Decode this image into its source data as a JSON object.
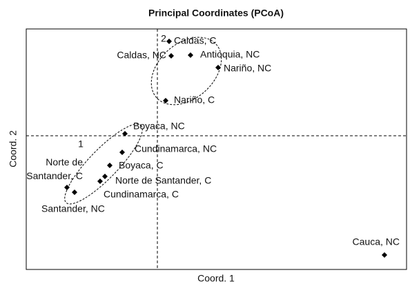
{
  "chart_data": {
    "type": "scatter",
    "title": "Principal Coordinates (PCoA)",
    "x_label": "Coord. 1",
    "y_label": "Coord. 2",
    "xlim": [
      -0.19,
      0.361
    ],
    "ylim": [
      -0.194,
      0.155
    ],
    "reference_lines": {
      "x": 0,
      "y": 0
    },
    "color": "#000000",
    "points": [
      {
        "label": "Caldas, C",
        "x": 0.017,
        "y": 0.137
      },
      {
        "label": "Caldas, NC",
        "x": 0.02,
        "y": 0.116
      },
      {
        "label": "Antioquia, NC",
        "x": 0.048,
        "y": 0.117
      },
      {
        "label": "Nariño, NC",
        "x": 0.088,
        "y": 0.099
      },
      {
        "label": "Nariño, C",
        "x": 0.012,
        "y": 0.051
      },
      {
        "label": "Boyaca, NC",
        "x": -0.047,
        "y": 0.003
      },
      {
        "label": "Cundinamarca, NC",
        "x": -0.051,
        "y": -0.024
      },
      {
        "label": "Boyaca, C",
        "x": -0.069,
        "y": -0.043
      },
      {
        "label": "Norte de Santander, C",
        "x": -0.076,
        "y": -0.059
      },
      {
        "label": "Cundinamarca, C",
        "x": -0.083,
        "y": -0.066
      },
      {
        "label": "Norte de\nSantander, C",
        "x": -0.131,
        "y": -0.075
      },
      {
        "label": "Santander, NC",
        "x": -0.12,
        "y": -0.082
      },
      {
        "label": "Cauca, NC",
        "x": 0.329,
        "y": -0.173
      }
    ],
    "annotations": [
      "2",
      "1"
    ]
  }
}
